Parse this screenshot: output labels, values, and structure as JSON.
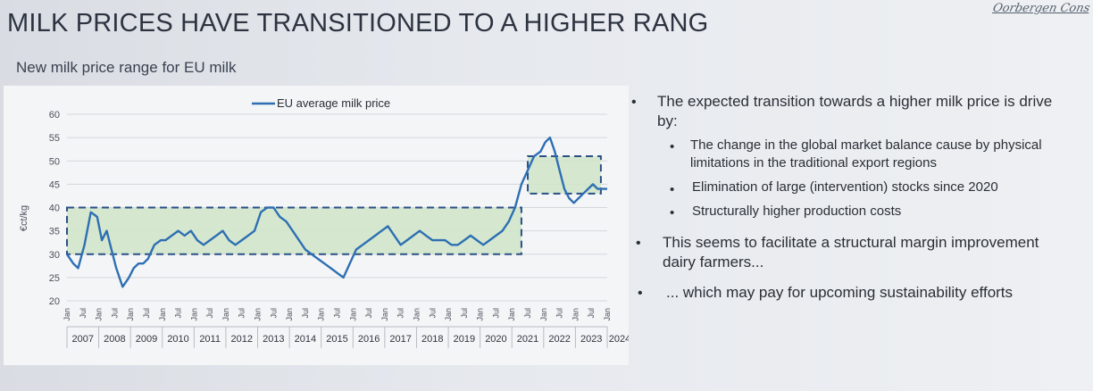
{
  "slide": {
    "title": "MILK PRICES HAVE TRANSITIONED TO A HIGHER RANG",
    "logo_text": "Oorbergen Cons",
    "subtitle": "New milk price range for EU milk"
  },
  "bullets": {
    "b1_line1": "The expected transition towards a higher milk price is drive",
    "b1_line2": "by:",
    "s1_line1": "The change in the global market balance cause by physical",
    "s1_line2": "limitations in the traditional export regions",
    "s2": "Elimination of large (intervention) stocks since 2020",
    "s3": "Structurally higher production costs",
    "b2_line1": "This seems to facilitate a structural margin improvement",
    "b2_line2": "dairy farmers...",
    "b3": "... which may pay for upcoming sustainability efforts"
  },
  "chart_data": {
    "type": "line",
    "ylabel": "€ct/kg",
    "ylim": [
      20,
      60
    ],
    "yticks": [
      20,
      25,
      30,
      35,
      40,
      45,
      50,
      55,
      60
    ],
    "grid": true,
    "legend": "top-center",
    "x_year_labels": [
      "2007",
      "2008",
      "2009",
      "2010",
      "2011",
      "2012",
      "2013",
      "2014",
      "2015",
      "2016",
      "2017",
      "2018",
      "2019",
      "2020",
      "2021",
      "2022",
      "2023",
      "2024"
    ],
    "x_month_labels": [
      "Jan",
      "Jul"
    ],
    "series": [
      {
        "name": "EU average milk price",
        "color": "#2e6fb3",
        "x": [
          2007.0,
          2007.2,
          2007.35,
          2007.55,
          2007.75,
          2007.95,
          2008.1,
          2008.25,
          2008.4,
          2008.55,
          2008.75,
          2008.95,
          2009.1,
          2009.25,
          2009.4,
          2009.55,
          2009.75,
          2009.95,
          2010.1,
          2010.3,
          2010.5,
          2010.7,
          2010.9,
          2011.1,
          2011.3,
          2011.5,
          2011.7,
          2011.9,
          2012.1,
          2012.3,
          2012.5,
          2012.7,
          2012.9,
          2013.1,
          2013.3,
          2013.5,
          2013.7,
          2013.9,
          2014.1,
          2014.3,
          2014.5,
          2014.7,
          2014.9,
          2015.1,
          2015.3,
          2015.5,
          2015.7,
          2015.9,
          2016.1,
          2016.3,
          2016.5,
          2016.7,
          2016.9,
          2017.1,
          2017.3,
          2017.5,
          2017.7,
          2017.9,
          2018.1,
          2018.3,
          2018.5,
          2018.7,
          2018.9,
          2019.1,
          2019.3,
          2019.5,
          2019.7,
          2019.9,
          2020.1,
          2020.3,
          2020.5,
          2020.7,
          2020.9,
          2021.1,
          2021.3,
          2021.5,
          2021.7,
          2021.9,
          2022.05,
          2022.2,
          2022.35,
          2022.5,
          2022.65,
          2022.8,
          2022.95,
          2023.1,
          2023.25,
          2023.4,
          2023.55,
          2023.7,
          2023.85,
          2024.0
        ],
        "values": [
          30,
          28,
          27,
          32,
          39,
          38,
          33,
          35,
          31,
          27,
          23,
          25,
          27,
          28,
          28,
          29,
          32,
          33,
          33,
          34,
          35,
          34,
          35,
          33,
          32,
          33,
          34,
          35,
          33,
          32,
          33,
          34,
          35,
          39,
          40,
          40,
          38,
          37,
          35,
          33,
          31,
          30,
          29,
          28,
          27,
          26,
          25,
          28,
          31,
          32,
          33,
          34,
          35,
          36,
          34,
          32,
          33,
          34,
          35,
          34,
          33,
          33,
          33,
          32,
          32,
          33,
          34,
          33,
          32,
          33,
          34,
          35,
          37,
          40,
          45,
          48,
          51,
          52,
          54,
          55,
          52,
          48,
          44,
          42,
          41,
          42,
          43,
          44,
          45,
          44,
          44,
          44
        ]
      }
    ],
    "annotations": [
      {
        "type": "range-box",
        "from_x": 2007.0,
        "to_x": 2021.3,
        "y_low": 30,
        "y_high": 40
      },
      {
        "type": "range-box",
        "from_x": 2021.5,
        "to_x": 2023.8,
        "y_low": 43,
        "y_high": 51
      }
    ]
  }
}
